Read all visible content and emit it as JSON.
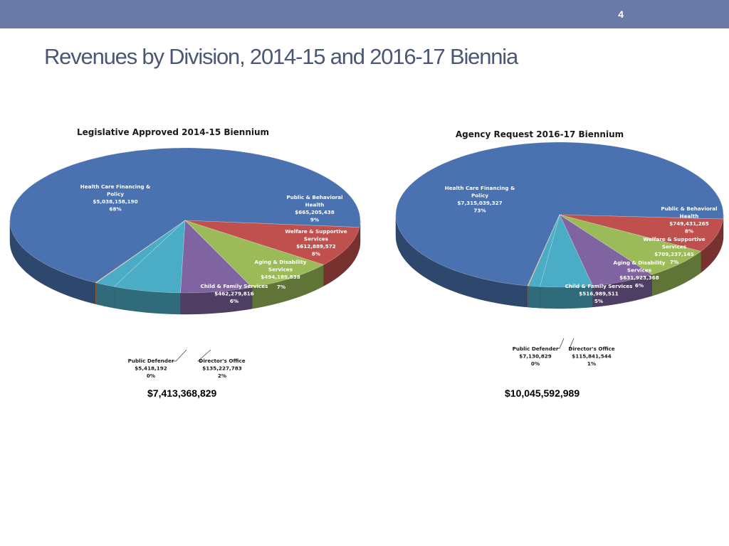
{
  "slide": {
    "page_number": "4",
    "title": "Revenues by Division, 2014-15 and 2016-17 Biennia"
  },
  "colors": {
    "header_bar": "#6b79a6",
    "Health Care Financing & Policy": "#4a72b0",
    "Public & Behavioral Health": "#c0504d",
    "Welfare & Supportive Services": "#9bbb59",
    "Aging & Disability Services": "#8064a2",
    "Child & Family Services": "#4bacc6",
    "Director's Office": "#4bacc6",
    "Public Defender": "#f79646"
  },
  "chart_data": [
    {
      "type": "pie",
      "title": "Legislative Approved 2014-15 Biennium",
      "total_label": "$7,413,368,829",
      "slices": [
        {
          "name": "Health Care Financing & Policy",
          "value": 5038158190,
          "amount": "$5,038,158,190",
          "percent": "68%"
        },
        {
          "name": "Public & Behavioral Health",
          "value": 665205438,
          "amount": "$665,205,438",
          "percent": "9%"
        },
        {
          "name": "Welfare & Supportive Services",
          "value": 612889572,
          "amount": "$612,889,572",
          "percent": "8%"
        },
        {
          "name": "Aging & Disability Services",
          "value": 494189838,
          "amount": "$494,189,838",
          "percent": "7%"
        },
        {
          "name": "Child & Family Services",
          "value": 462279816,
          "amount": "$462,279,816",
          "percent": "6%"
        },
        {
          "name": "Director's Office",
          "value": 135227783,
          "amount": "$135,227,783",
          "percent": "2%"
        },
        {
          "name": "Public Defender",
          "value": 5418192,
          "amount": "$5,418,192",
          "percent": "0%"
        }
      ]
    },
    {
      "type": "pie",
      "title": "Agency Request 2016-17 Biennium",
      "total_label": "$10,045,592,989",
      "slices": [
        {
          "name": "Health Care Financing & Policy",
          "value": 7315039327,
          "amount": "$7,315,039,327",
          "percent": "73%"
        },
        {
          "name": "Public & Behavioral Health",
          "value": 749431265,
          "amount": "$749,431,265",
          "percent": "8%"
        },
        {
          "name": "Welfare & Supportive Services",
          "value": 709237145,
          "amount": "$709,237,145",
          "percent": "7%"
        },
        {
          "name": "Aging & Disability Services",
          "value": 631923368,
          "amount": "$631,923,368",
          "percent": "6%"
        },
        {
          "name": "Child & Family Services",
          "value": 516989511,
          "amount": "$516,989,511",
          "percent": "5%"
        },
        {
          "name": "Director's Office",
          "value": 115841544,
          "amount": "$115,841,544",
          "percent": "1%"
        },
        {
          "name": "Public Defender",
          "value": 7130829,
          "amount": "$7,130,829",
          "percent": "0%"
        }
      ]
    }
  ]
}
